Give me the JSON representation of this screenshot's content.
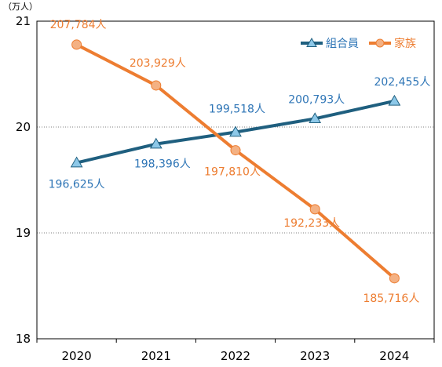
{
  "chart_data": {
    "type": "line",
    "title": "",
    "xlabel": "",
    "ylabel": "",
    "y_unit": "（万人）",
    "x": [
      "2020",
      "2021",
      "2022",
      "2023",
      "2024"
    ],
    "ylim": [
      18,
      21
    ],
    "yticks": [
      "18",
      "19",
      "20",
      "21"
    ],
    "grid": "horizontal dotted",
    "legend": "top-right",
    "series": [
      {
        "name": "組合員",
        "values": [
          19.6625,
          19.8396,
          19.9518,
          20.0793,
          20.2455
        ],
        "labels": [
          "196,625人",
          "198,396人",
          "199,518人",
          "200,793人",
          "202,455人"
        ],
        "color": "#1F5F7F",
        "label_color": "#2E75B6",
        "marker": "triangle",
        "marker_color": "#8DC8E8"
      },
      {
        "name": "家族",
        "values": [
          20.7784,
          20.3929,
          19.781,
          19.2233,
          18.5716
        ],
        "labels": [
          "207,784人",
          "203,929人",
          "197,810人",
          "192,233人",
          "185,716人"
        ],
        "color": "#ED7D31",
        "label_color": "#ED7D31",
        "marker": "circle",
        "marker_color": "#F4B183"
      }
    ]
  }
}
